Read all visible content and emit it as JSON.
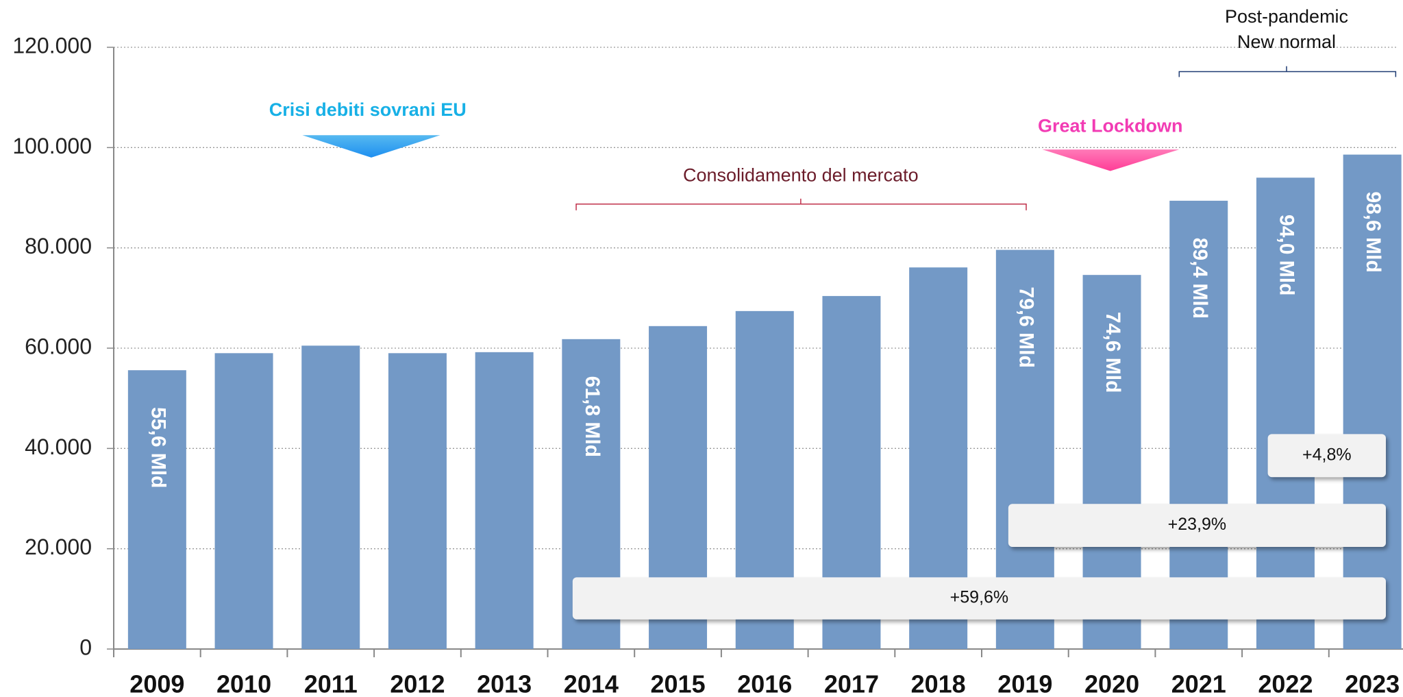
{
  "chart_data": {
    "type": "bar",
    "categories": [
      "2009",
      "2010",
      "2011",
      "2012",
      "2013",
      "2014",
      "2015",
      "2016",
      "2017",
      "2018",
      "2019",
      "2020",
      "2021",
      "2022",
      "2023"
    ],
    "values": [
      55600,
      59000,
      60500,
      59000,
      59200,
      61800,
      64400,
      67400,
      70400,
      76100,
      79600,
      74600,
      89400,
      94000,
      98600
    ],
    "value_labels": [
      "55,6 Mld",
      null,
      null,
      null,
      null,
      "61,8 Mld",
      null,
      null,
      null,
      null,
      "79,6 Mld",
      "74,6 Mld",
      "89,4 Mld",
      "94,0 Mld",
      "98,6 Mld"
    ],
    "color": "#7399c6",
    "ylim": [
      0,
      120000
    ],
    "yticks": [
      0,
      {
        "value": 20000,
        "label": "20.000"
      },
      {
        "value": 40000,
        "label": "40.000"
      },
      {
        "value": 60000,
        "label": "60.000"
      },
      {
        "value": 80000,
        "label": "80.000"
      },
      {
        "value": 100000,
        "label": "100.000"
      },
      {
        "value": 120000,
        "label": "120.000"
      }
    ],
    "grid": true,
    "annotations": {
      "crisis": "Crisi debiti sovrani EU",
      "lockdown": "Great Lockdown",
      "consolidation": "Consolidamento del mercato",
      "post_pandemic": [
        "Post-pandemic",
        "New normal"
      ],
      "growth": [
        "+4,8%",
        "+23,9%",
        "+59,6%"
      ]
    }
  }
}
